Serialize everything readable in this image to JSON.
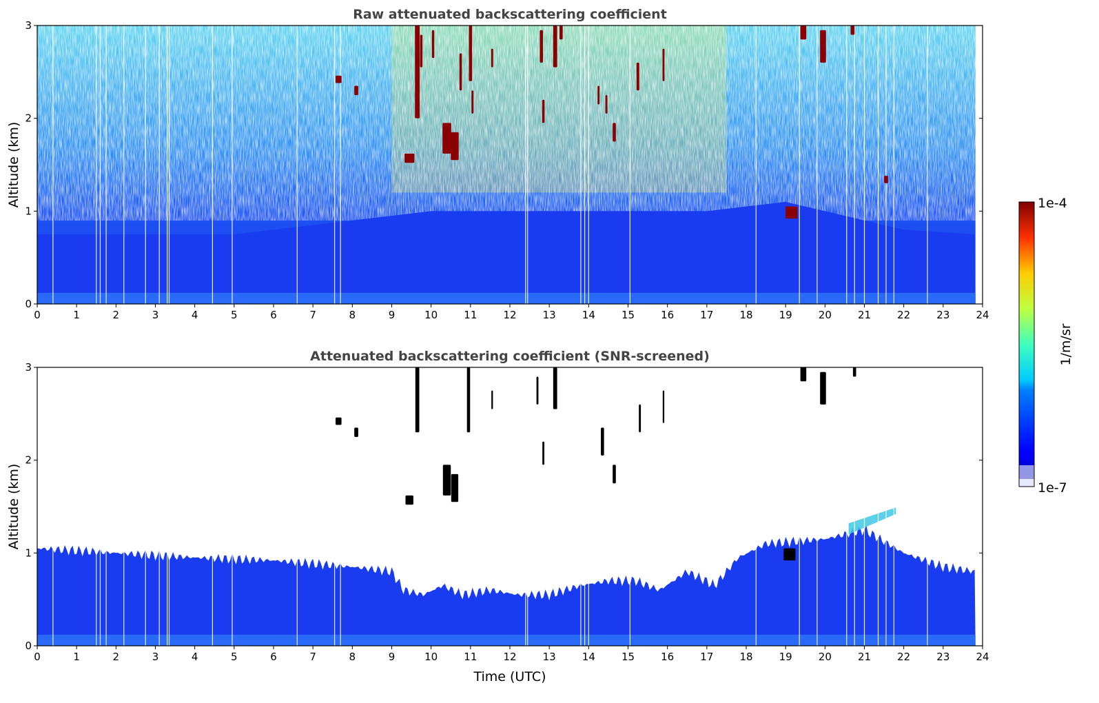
{
  "colors": {
    "background_white": "#ffffff",
    "aerosol_blue": "#1a3cf0",
    "near_surface_blue": "#2a6af8",
    "noise_cyan": "#3fc8e8",
    "noise_yellow": "#e6ea55",
    "cloud_darkred": "#8b0000",
    "cloud_black": "#000000"
  },
  "colorbar": {
    "top_label": "1e-4",
    "bottom_label": "1e-7",
    "unit_label": "1/m/sr",
    "colormap": "jet",
    "scale": "log",
    "range": [
      1e-07,
      0.0001
    ]
  },
  "chart_data": [
    {
      "type": "heatmap",
      "title": "Raw attenuated backscattering coefficient",
      "xlabel": "",
      "ylabel": "Altitude (km)",
      "xlim": [
        0,
        24
      ],
      "ylim": [
        0,
        3
      ],
      "xticks": [
        "0",
        "1",
        "2",
        "3",
        "4",
        "5",
        "6",
        "7",
        "8",
        "9",
        "10",
        "11",
        "12",
        "13",
        "14",
        "15",
        "16",
        "17",
        "18",
        "19",
        "20",
        "21",
        "22",
        "23",
        "24"
      ],
      "yticks": [
        "0",
        "1",
        "2",
        "3"
      ],
      "z_unit": "1/m/sr",
      "z_scale": "log",
      "z_range": [
        1e-07,
        0.0001
      ],
      "data_end_hour": 23.82,
      "boundary_layer_top_km": [
        {
          "hour": 0,
          "km": 0.75
        },
        {
          "hour": 5,
          "km": 0.75
        },
        {
          "hour": 8,
          "km": 0.9
        },
        {
          "hour": 10,
          "km": 1.0
        },
        {
          "hour": 13,
          "km": 1.0
        },
        {
          "hour": 17,
          "km": 1.0
        },
        {
          "hour": 19,
          "km": 1.1
        },
        {
          "hour": 22,
          "km": 0.8
        },
        {
          "hour": 23.8,
          "km": 0.75
        }
      ],
      "dropout_lines_hours": [
        0.4,
        1.5,
        1.6,
        1.75,
        2.2,
        2.75,
        3.1,
        3.3,
        3.35,
        4.45,
        4.95,
        6.6,
        7.55,
        7.7,
        12.4,
        12.45,
        13.8,
        13.9,
        14.0,
        15.05,
        18.25,
        19.35,
        19.8,
        20.55,
        20.75,
        21.0,
        21.35,
        21.55,
        21.75,
        22.6
      ],
      "cloud_features": [
        {
          "hour": 7.65,
          "km_bottom": 2.38,
          "km_top": 2.46,
          "width_h": 0.15
        },
        {
          "hour": 8.1,
          "km_bottom": 2.25,
          "km_top": 2.35,
          "width_h": 0.1
        },
        {
          "hour": 9.45,
          "km_bottom": 1.52,
          "km_top": 1.62,
          "width_h": 0.25
        },
        {
          "hour": 9.65,
          "km_bottom": 2.0,
          "km_top": 3.0,
          "width_h": 0.12
        },
        {
          "hour": 9.75,
          "km_bottom": 2.55,
          "km_top": 2.9,
          "width_h": 0.06
        },
        {
          "hour": 10.05,
          "km_bottom": 2.65,
          "km_top": 2.95,
          "width_h": 0.06
        },
        {
          "hour": 10.4,
          "km_bottom": 1.62,
          "km_top": 1.95,
          "width_h": 0.22
        },
        {
          "hour": 10.6,
          "km_bottom": 1.55,
          "km_top": 1.85,
          "width_h": 0.2
        },
        {
          "hour": 10.75,
          "km_bottom": 2.3,
          "km_top": 2.7,
          "width_h": 0.06
        },
        {
          "hour": 11.0,
          "km_bottom": 2.4,
          "km_top": 3.0,
          "width_h": 0.08
        },
        {
          "hour": 11.05,
          "km_bottom": 2.05,
          "km_top": 2.3,
          "width_h": 0.05
        },
        {
          "hour": 11.55,
          "km_bottom": 2.55,
          "km_top": 2.75,
          "width_h": 0.05
        },
        {
          "hour": 12.8,
          "km_bottom": 2.6,
          "km_top": 2.95,
          "width_h": 0.08
        },
        {
          "hour": 13.15,
          "km_bottom": 2.55,
          "km_top": 3.0,
          "width_h": 0.1
        },
        {
          "hour": 13.3,
          "km_bottom": 2.85,
          "km_top": 3.0,
          "width_h": 0.08
        },
        {
          "hour": 12.85,
          "km_bottom": 1.95,
          "km_top": 2.2,
          "width_h": 0.06
        },
        {
          "hour": 14.25,
          "km_bottom": 2.15,
          "km_top": 2.35,
          "width_h": 0.05
        },
        {
          "hour": 14.45,
          "km_bottom": 2.05,
          "km_top": 2.25,
          "width_h": 0.05
        },
        {
          "hour": 14.65,
          "km_bottom": 1.75,
          "km_top": 1.95,
          "width_h": 0.08
        },
        {
          "hour": 15.25,
          "km_bottom": 2.3,
          "km_top": 2.6,
          "width_h": 0.07
        },
        {
          "hour": 15.9,
          "km_bottom": 2.4,
          "km_top": 2.75,
          "width_h": 0.05
        },
        {
          "hour": 19.15,
          "km_bottom": 0.92,
          "km_top": 1.05,
          "width_h": 0.3
        },
        {
          "hour": 19.45,
          "km_bottom": 2.85,
          "km_top": 3.0,
          "width_h": 0.15
        },
        {
          "hour": 19.95,
          "km_bottom": 2.6,
          "km_top": 2.95,
          "width_h": 0.15
        },
        {
          "hour": 20.7,
          "km_bottom": 2.9,
          "km_top": 3.0,
          "width_h": 0.1
        },
        {
          "hour": 21.55,
          "km_bottom": 1.3,
          "km_top": 1.38,
          "width_h": 0.1
        }
      ]
    },
    {
      "type": "heatmap",
      "title": "Attenuated backscattering coefficient (SNR-screened)",
      "xlabel": "Time (UTC)",
      "ylabel": "Altitude (km)",
      "xlim": [
        0,
        24
      ],
      "ylim": [
        0,
        3
      ],
      "xticks": [
        "0",
        "1",
        "2",
        "3",
        "4",
        "5",
        "6",
        "7",
        "8",
        "9",
        "10",
        "11",
        "12",
        "13",
        "14",
        "15",
        "16",
        "17",
        "18",
        "19",
        "20",
        "21",
        "22",
        "23",
        "24"
      ],
      "yticks": [
        "0",
        "1",
        "2",
        "3"
      ],
      "z_unit": "1/m/sr",
      "z_scale": "log",
      "z_range": [
        1e-07,
        0.0001
      ],
      "screened_aerosol_top_km": [
        {
          "hour": 0,
          "km": 1.05
        },
        {
          "hour": 2,
          "km": 1.0
        },
        {
          "hour": 4,
          "km": 0.95
        },
        {
          "hour": 6,
          "km": 0.92
        },
        {
          "hour": 8,
          "km": 0.85
        },
        {
          "hour": 9,
          "km": 0.8
        },
        {
          "hour": 9.3,
          "km": 0.6
        },
        {
          "hour": 9.8,
          "km": 0.55
        },
        {
          "hour": 10.3,
          "km": 0.65
        },
        {
          "hour": 10.8,
          "km": 0.55
        },
        {
          "hour": 11.5,
          "km": 0.6
        },
        {
          "hour": 12.2,
          "km": 0.55
        },
        {
          "hour": 13.0,
          "km": 0.55
        },
        {
          "hour": 13.8,
          "km": 0.65
        },
        {
          "hour": 14.5,
          "km": 0.7
        },
        {
          "hour": 15.2,
          "km": 0.7
        },
        {
          "hour": 15.8,
          "km": 0.6
        },
        {
          "hour": 16.5,
          "km": 0.8
        },
        {
          "hour": 17.2,
          "km": 0.65
        },
        {
          "hour": 17.8,
          "km": 0.95
        },
        {
          "hour": 18.5,
          "km": 1.1
        },
        {
          "hour": 20.0,
          "km": 1.15
        },
        {
          "hour": 21.0,
          "km": 1.25
        },
        {
          "hour": 22.0,
          "km": 1.0
        },
        {
          "hour": 23.0,
          "km": 0.85
        },
        {
          "hour": 23.8,
          "km": 0.8
        }
      ],
      "elevated_layer": {
        "hour_start": 20.6,
        "hour_end": 21.8,
        "km_start": 1.25,
        "km_end": 1.45
      },
      "cloud_features": [
        {
          "hour": 7.65,
          "km_bottom": 2.38,
          "km_top": 2.46,
          "width_h": 0.15
        },
        {
          "hour": 8.1,
          "km_bottom": 2.25,
          "km_top": 2.35,
          "width_h": 0.1
        },
        {
          "hour": 9.45,
          "km_bottom": 1.52,
          "km_top": 1.62,
          "width_h": 0.2
        },
        {
          "hour": 9.65,
          "km_bottom": 2.3,
          "km_top": 3.0,
          "width_h": 0.1
        },
        {
          "hour": 10.4,
          "km_bottom": 1.62,
          "km_top": 1.95,
          "width_h": 0.2
        },
        {
          "hour": 10.6,
          "km_bottom": 1.55,
          "km_top": 1.85,
          "width_h": 0.18
        },
        {
          "hour": 10.95,
          "km_bottom": 2.3,
          "km_top": 3.0,
          "width_h": 0.08
        },
        {
          "hour": 11.55,
          "km_bottom": 2.55,
          "km_top": 2.75,
          "width_h": 0.04
        },
        {
          "hour": 12.7,
          "km_bottom": 2.6,
          "km_top": 2.9,
          "width_h": 0.05
        },
        {
          "hour": 13.15,
          "km_bottom": 2.55,
          "km_top": 3.0,
          "width_h": 0.1
        },
        {
          "hour": 12.85,
          "km_bottom": 1.95,
          "km_top": 2.2,
          "width_h": 0.05
        },
        {
          "hour": 14.35,
          "km_bottom": 2.05,
          "km_top": 2.35,
          "width_h": 0.08
        },
        {
          "hour": 14.65,
          "km_bottom": 1.75,
          "km_top": 1.95,
          "width_h": 0.08
        },
        {
          "hour": 15.3,
          "km_bottom": 2.3,
          "km_top": 2.6,
          "width_h": 0.05
        },
        {
          "hour": 15.9,
          "km_bottom": 2.4,
          "km_top": 2.75,
          "width_h": 0.04
        },
        {
          "hour": 19.1,
          "km_bottom": 0.92,
          "km_top": 1.05,
          "width_h": 0.3
        },
        {
          "hour": 19.45,
          "km_bottom": 2.85,
          "km_top": 3.0,
          "width_h": 0.15
        },
        {
          "hour": 19.95,
          "km_bottom": 2.6,
          "km_top": 2.95,
          "width_h": 0.15
        },
        {
          "hour": 20.75,
          "km_bottom": 2.9,
          "km_top": 3.0,
          "width_h": 0.08
        }
      ]
    }
  ]
}
